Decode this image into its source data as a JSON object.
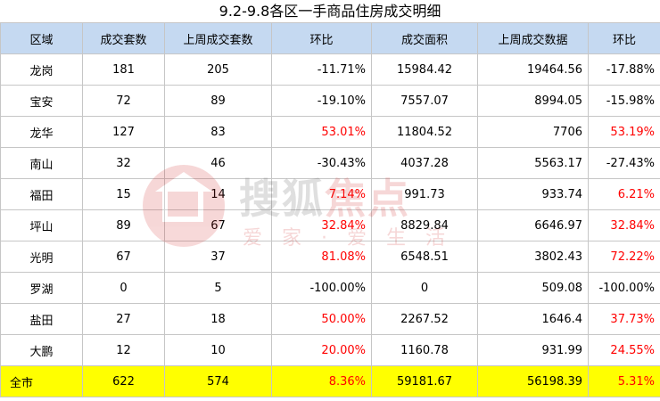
{
  "title": "9.2-9.8各区一手商品住房成交明细",
  "headers": [
    "区域",
    "成交套数",
    "上周成交套数",
    "环比",
    "成交面积",
    "上周成交数据",
    "环比"
  ],
  "rows": [
    {
      "district": "龙岗",
      "units": "181",
      "last_units": "205",
      "units_change": "-11.71%",
      "area": "15984.42",
      "last_area": "19464.56",
      "area_change": "-17.88%"
    },
    {
      "district": "宝安",
      "units": "72",
      "last_units": "89",
      "units_change": "-19.10%",
      "area": "7557.07",
      "last_area": "8994.05",
      "area_change": "-15.98%"
    },
    {
      "district": "龙华",
      "units": "127",
      "last_units": "83",
      "units_change": "53.01%",
      "area": "11804.52",
      "last_area": "7706",
      "area_change": "53.19%"
    },
    {
      "district": "南山",
      "units": "32",
      "last_units": "46",
      "units_change": "-30.43%",
      "area": "4037.28",
      "last_area": "5563.17",
      "area_change": "-27.43%"
    },
    {
      "district": "福田",
      "units": "15",
      "last_units": "14",
      "units_change": "7.14%",
      "area": "991.73",
      "last_area": "933.74",
      "area_change": "6.21%"
    },
    {
      "district": "坪山",
      "units": "89",
      "last_units": "67",
      "units_change": "32.84%",
      "area": "8829.84",
      "last_area": "6646.97",
      "area_change": "32.84%"
    },
    {
      "district": "光明",
      "units": "67",
      "last_units": "37",
      "units_change": "81.08%",
      "area": "6548.51",
      "last_area": "3802.43",
      "area_change": "72.22%"
    },
    {
      "district": "罗湖",
      "units": "0",
      "last_units": "5",
      "units_change": "-100.00%",
      "area": "0",
      "last_area": "509.08",
      "area_change": "-100.00%"
    },
    {
      "district": "盐田",
      "units": "27",
      "last_units": "18",
      "units_change": "50.00%",
      "area": "2267.52",
      "last_area": "1646.4",
      "area_change": "37.73%"
    },
    {
      "district": "大鹏",
      "units": "12",
      "last_units": "10",
      "units_change": "20.00%",
      "area": "1160.78",
      "last_area": "931.99",
      "area_change": "24.55%"
    }
  ],
  "total": {
    "district": "全市",
    "units": "622",
    "last_units": "574",
    "units_change": "8.36%",
    "area": "59181.67",
    "last_area": "56198.39",
    "area_change": "5.31%"
  },
  "watermark": {
    "brand": "搜狐",
    "brand_highlight": "焦点",
    "slogan": "爱家·爱生活"
  },
  "colors": {
    "header_bg": "#c5d9f1",
    "total_bg": "#ffff00",
    "increase_text": "#ff0000",
    "border": "#c6c6c6"
  }
}
